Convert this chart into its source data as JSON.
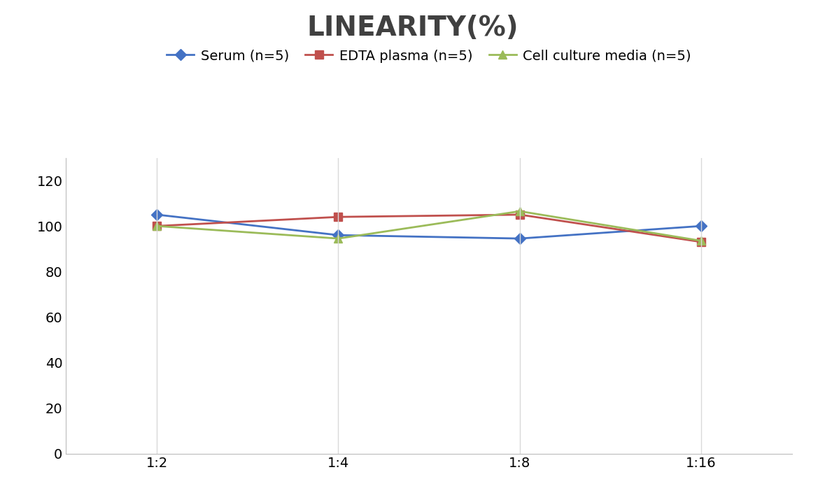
{
  "title": "LINEARITY(%)",
  "title_fontsize": 28,
  "title_fontweight": "bold",
  "x_labels": [
    "1:2",
    "1:4",
    "1:8",
    "1:16"
  ],
  "x_positions": [
    0,
    1,
    2,
    3
  ],
  "series": [
    {
      "label": "Serum (n=5)",
      "values": [
        105,
        96,
        94.5,
        100
      ],
      "color": "#4472C4",
      "marker": "D",
      "markersize": 8,
      "linewidth": 2
    },
    {
      "label": "EDTA plasma (n=5)",
      "values": [
        100,
        104,
        105,
        93
      ],
      "color": "#C0504D",
      "marker": "s",
      "markersize": 8,
      "linewidth": 2
    },
    {
      "label": "Cell culture media (n=5)",
      "values": [
        100,
        94.5,
        106.5,
        93.5
      ],
      "color": "#9BBB59",
      "marker": "^",
      "markersize": 9,
      "linewidth": 2
    }
  ],
  "ylim": [
    0,
    130
  ],
  "yticks": [
    0,
    20,
    40,
    60,
    80,
    100,
    120
  ],
  "grid_color": "#D9D9D9",
  "background_color": "#FFFFFF",
  "legend_fontsize": 14,
  "tick_fontsize": 14,
  "figsize": [
    11.79,
    7.05
  ],
  "dpi": 100
}
